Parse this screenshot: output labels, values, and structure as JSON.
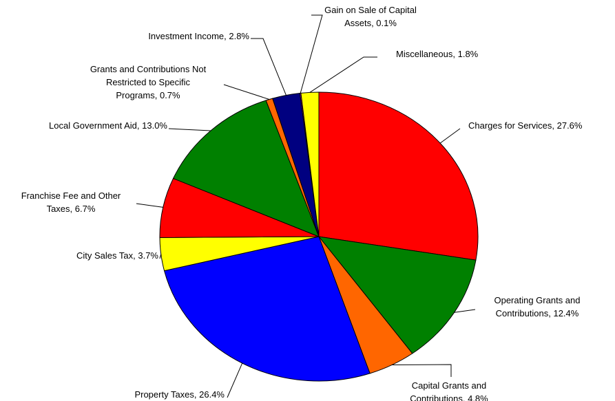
{
  "chart_data": {
    "type": "pie",
    "labels": [
      [
        "Charges for Services, 27.6%"
      ],
      [
        "Operating Grants and",
        "Contributions, 12.4%"
      ],
      [
        "Capital Grants and",
        "Contributions, 4.8%"
      ],
      [
        "Property Taxes, 26.4%"
      ],
      [
        "City Sales Tax, 3.7%"
      ],
      [
        "Franchise Fee and Other",
        "Taxes, 6.7%"
      ],
      [
        "Local Government Aid, 13.0%"
      ],
      [
        "Grants and Contributions Not",
        "Restricted to Specific",
        "Programs, 0.7%"
      ],
      [
        "Investment Income, 2.8%"
      ],
      [
        "Gain on Sale of Capital",
        "Assets, 0.1%"
      ],
      [
        "Miscellaneous, 1.8%"
      ]
    ],
    "values": [
      27.6,
      12.4,
      4.8,
      26.4,
      3.7,
      6.7,
      13.0,
      0.7,
      2.8,
      0.1,
      1.8
    ],
    "colors": [
      "#FF0000",
      "#008000",
      "#FF6600",
      "#0000FF",
      "#FFFF00",
      "#FF0000",
      "#008000",
      "#FF6600",
      "#000080",
      "#FF00FF",
      "#FFFF00"
    ]
  }
}
